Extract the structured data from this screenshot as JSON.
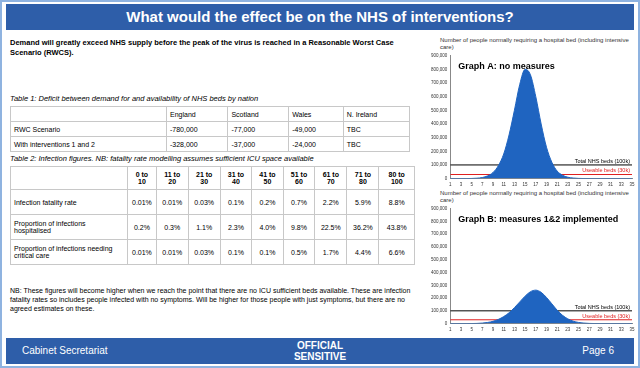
{
  "header": {
    "title": "What would the effect be on the NHS of interventions?"
  },
  "intro": "Demand will greatly exceed NHS supply before the peak of the virus is reached in a Reasonable Worst Case Scenario (RWCS).",
  "table1": {
    "caption": "Table 1: Deficit between demand for and availability of NHS beds by nation",
    "columns": [
      "England",
      "Scotland",
      "Wales",
      "N. Ireland"
    ],
    "rows": [
      {
        "label": "RWC Scenario",
        "values": [
          "-780,000",
          "-77,000",
          "-49,000",
          "TBC"
        ]
      },
      {
        "label": "With interventions 1 and 2",
        "values": [
          "-328,000",
          "-37,000",
          "-24,000",
          "TBC"
        ]
      }
    ]
  },
  "table2": {
    "caption": "Table 2: Infection figures. NB: fatality rate modelling assumes sufficient ICU space available",
    "columns": [
      "0 to 10",
      "11 to 20",
      "21 to 30",
      "31 to 40",
      "41 to 50",
      "51 to 60",
      "61 to 70",
      "71 to 80",
      "80 to 100"
    ],
    "rows": [
      {
        "label": "Infection fatality rate",
        "values": [
          "0.01%",
          "0.01%",
          "0.03%",
          "0.1%",
          "0.2%",
          "0.7%",
          "2.2%",
          "5.9%",
          "8.8%"
        ]
      },
      {
        "label": "Proportion of infections hospitalised",
        "values": [
          "0.2%",
          "0.3%",
          "1.1%",
          "2.3%",
          "4.0%",
          "9.8%",
          "22.5%",
          "36.2%",
          "43.8%"
        ]
      },
      {
        "label": "Proportion of infections needing critical care",
        "values": [
          "0.01%",
          "0.01%",
          "0.03%",
          "0.1%",
          "0.1%",
          "0.5%",
          "1.7%",
          "4.4%",
          "6.6%"
        ]
      }
    ]
  },
  "note": "NB: These figures will become higher when we reach the point that there are no ICU sufficient beds available. These are infection fatality rates so includes people infected with no symptoms. Will be higher for those people with just symptoms, but there are no agreed estimates on these.",
  "footer": {
    "left": "Cabinet Secretariat",
    "center": [
      "OFFICIAL",
      "SENSITIVE"
    ],
    "right": "Page 6"
  },
  "chart_data": [
    {
      "type": "area",
      "title": "Graph A: no measures",
      "subtitle": "Number of people normally requiring a hospital bed (including intensive care)",
      "x": [
        1,
        2,
        3,
        4,
        5,
        6,
        7,
        8,
        9,
        10,
        11,
        12,
        13,
        14,
        15,
        16,
        17,
        18,
        19,
        20,
        21,
        22,
        23,
        24,
        25,
        26,
        27,
        28,
        29,
        30,
        31,
        32,
        33,
        34,
        35
      ],
      "values": [
        0,
        0,
        0,
        0,
        1000,
        3000,
        8000,
        20000,
        45000,
        95000,
        180000,
        320000,
        500000,
        690000,
        800000,
        760000,
        600000,
        400000,
        230000,
        120000,
        55000,
        25000,
        10000,
        4000,
        1500,
        500,
        0,
        0,
        0,
        0,
        0,
        0,
        0,
        0,
        0
      ],
      "color": "#1f64c0",
      "xlim": [
        1,
        35
      ],
      "xticks": [
        1,
        3,
        5,
        7,
        9,
        11,
        13,
        15,
        17,
        19,
        21,
        23,
        25,
        27,
        29,
        31,
        33,
        35
      ],
      "ylim": [
        0,
        900000
      ],
      "yticks": [
        {
          "value": 0,
          "label": "0"
        },
        {
          "value": 100000,
          "label": "100,000"
        },
        {
          "value": 200000,
          "label": "200,000"
        },
        {
          "value": 300000,
          "label": "300,000"
        },
        {
          "value": 400000,
          "label": "400,000"
        },
        {
          "value": 500000,
          "label": "500,000"
        },
        {
          "value": 600000,
          "label": "600,000"
        },
        {
          "value": 700000,
          "label": "700,000"
        },
        {
          "value": 800000,
          "label": "800,000"
        },
        {
          "value": 900000,
          "label": "900,000"
        }
      ],
      "grid": false,
      "reference_lines": [
        {
          "label": "Total NHS beds (100k)",
          "value": 100000,
          "color": "#000000"
        },
        {
          "label": "Useable beds (30k)",
          "value": 30000,
          "color": "#e02020"
        }
      ]
    },
    {
      "type": "area",
      "title": "Graph B: measures 1&2 implemented",
      "subtitle": "Number of people normally requiring a hospital bed (including intensive care)",
      "x": [
        1,
        2,
        3,
        4,
        5,
        6,
        7,
        8,
        9,
        10,
        11,
        12,
        13,
        14,
        15,
        16,
        17,
        18,
        19,
        20,
        21,
        22,
        23,
        24,
        25,
        26,
        27,
        28,
        29,
        30,
        31,
        32,
        33,
        34,
        35
      ],
      "values": [
        0,
        0,
        0,
        0,
        500,
        1500,
        4000,
        9000,
        18000,
        33000,
        55000,
        85000,
        125000,
        170000,
        215000,
        250000,
        262000,
        245000,
        205000,
        155000,
        105000,
        65000,
        37000,
        19000,
        9000,
        4000,
        1500,
        500,
        0,
        0,
        0,
        0,
        0,
        0,
        0
      ],
      "color": "#1f64c0",
      "xlim": [
        1,
        35
      ],
      "xticks": [
        1,
        3,
        5,
        7,
        9,
        11,
        13,
        15,
        17,
        19,
        21,
        23,
        25,
        27,
        29,
        31,
        33,
        35
      ],
      "ylim": [
        0,
        900000
      ],
      "yticks": [
        {
          "value": 0,
          "label": "0"
        },
        {
          "value": 100000,
          "label": "100,000"
        },
        {
          "value": 200000,
          "label": "200,000"
        },
        {
          "value": 300000,
          "label": "300,000"
        },
        {
          "value": 400000,
          "label": "400,000"
        },
        {
          "value": 500000,
          "label": "500,000"
        },
        {
          "value": 600000,
          "label": "600,000"
        },
        {
          "value": 700000,
          "label": "700,000"
        },
        {
          "value": 800000,
          "label": "800,000"
        },
        {
          "value": 900000,
          "label": "900,000"
        }
      ],
      "grid": false,
      "reference_lines": [
        {
          "label": "Total NHS beds (100k)",
          "value": 100000,
          "color": "#000000"
        },
        {
          "label": "Useable beds (30k)",
          "value": 30000,
          "color": "#e02020"
        }
      ]
    }
  ]
}
